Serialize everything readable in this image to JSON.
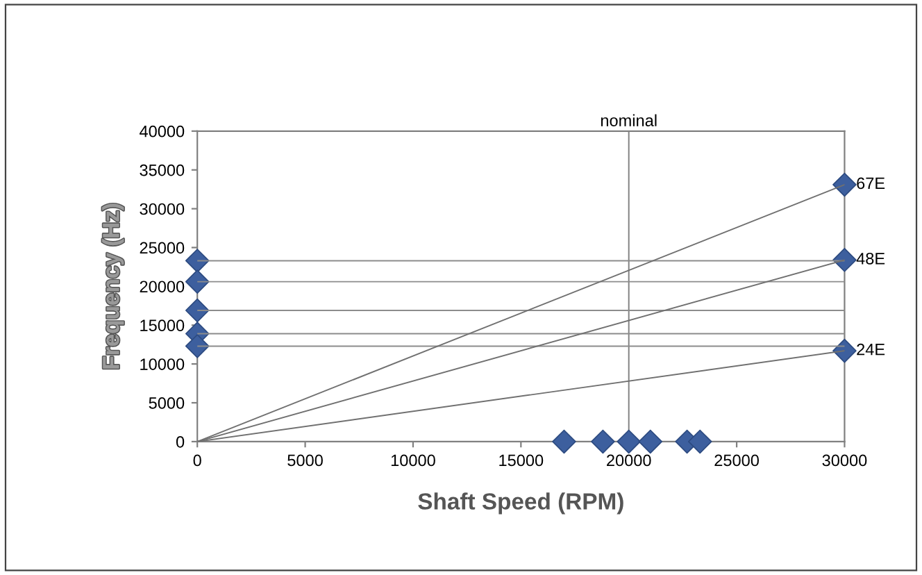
{
  "chart_data": {
    "type": "scatter",
    "xlabel": "Shaft Speed (RPM)",
    "ylabel": "Frequency (Hz)",
    "xlim": [
      0,
      30000
    ],
    "ylim": [
      0,
      40000
    ],
    "xticks": [
      0,
      5000,
      10000,
      15000,
      20000,
      25000,
      30000
    ],
    "yticks": [
      0,
      5000,
      10000,
      15000,
      20000,
      25000,
      30000,
      35000,
      40000
    ],
    "grid": false,
    "ref_lines": [
      {
        "axis": "x",
        "value": 20000,
        "label": "nominal",
        "color": "#808080"
      }
    ],
    "series": [
      {
        "type": "line",
        "x": [
          0,
          30000
        ],
        "values": [
          23300,
          23300
        ],
        "color": "#8c8c8c",
        "marker": "none"
      },
      {
        "type": "line",
        "x": [
          0,
          30000
        ],
        "values": [
          20600,
          20600
        ],
        "color": "#8c8c8c",
        "marker": "none"
      },
      {
        "type": "line",
        "x": [
          0,
          30000
        ],
        "values": [
          16900,
          16900
        ],
        "color": "#8c8c8c",
        "marker": "none"
      },
      {
        "type": "line",
        "x": [
          0,
          30000
        ],
        "values": [
          13900,
          13900
        ],
        "color": "#8c8c8c",
        "marker": "none"
      },
      {
        "type": "line",
        "x": [
          0,
          30000
        ],
        "values": [
          12300,
          12300
        ],
        "color": "#8c8c8c",
        "marker": "none"
      },
      {
        "type": "line",
        "x": [
          0,
          30000
        ],
        "values": [
          0,
          33100
        ],
        "color": "#707070",
        "marker": "none"
      },
      {
        "type": "line",
        "x": [
          0,
          30000
        ],
        "values": [
          0,
          23400
        ],
        "color": "#707070",
        "marker": "none"
      },
      {
        "type": "line",
        "x": [
          0,
          30000
        ],
        "values": [
          0,
          11700
        ],
        "color": "#707070",
        "marker": "none"
      },
      {
        "x": [
          0,
          0,
          0,
          0,
          0
        ],
        "values": [
          23300,
          20600,
          16900,
          13900,
          12300
        ],
        "color": "#3d5f9e",
        "marker": "diamond"
      },
      {
        "name": "67E",
        "x": [
          30000
        ],
        "values": [
          33100
        ],
        "color": "#3d5f9e",
        "marker": "diamond"
      },
      {
        "name": "48E",
        "x": [
          30000
        ],
        "values": [
          23400
        ],
        "color": "#3d5f9e",
        "marker": "diamond"
      },
      {
        "name": "24E",
        "x": [
          30000
        ],
        "values": [
          11700
        ],
        "color": "#3d5f9e",
        "marker": "diamond"
      },
      {
        "x": [
          17000,
          18800,
          20000,
          21000,
          22700,
          23300
        ],
        "values": [
          0,
          0,
          0,
          0,
          0,
          0
        ],
        "color": "#3d5f9e",
        "marker": "diamond"
      }
    ]
  }
}
